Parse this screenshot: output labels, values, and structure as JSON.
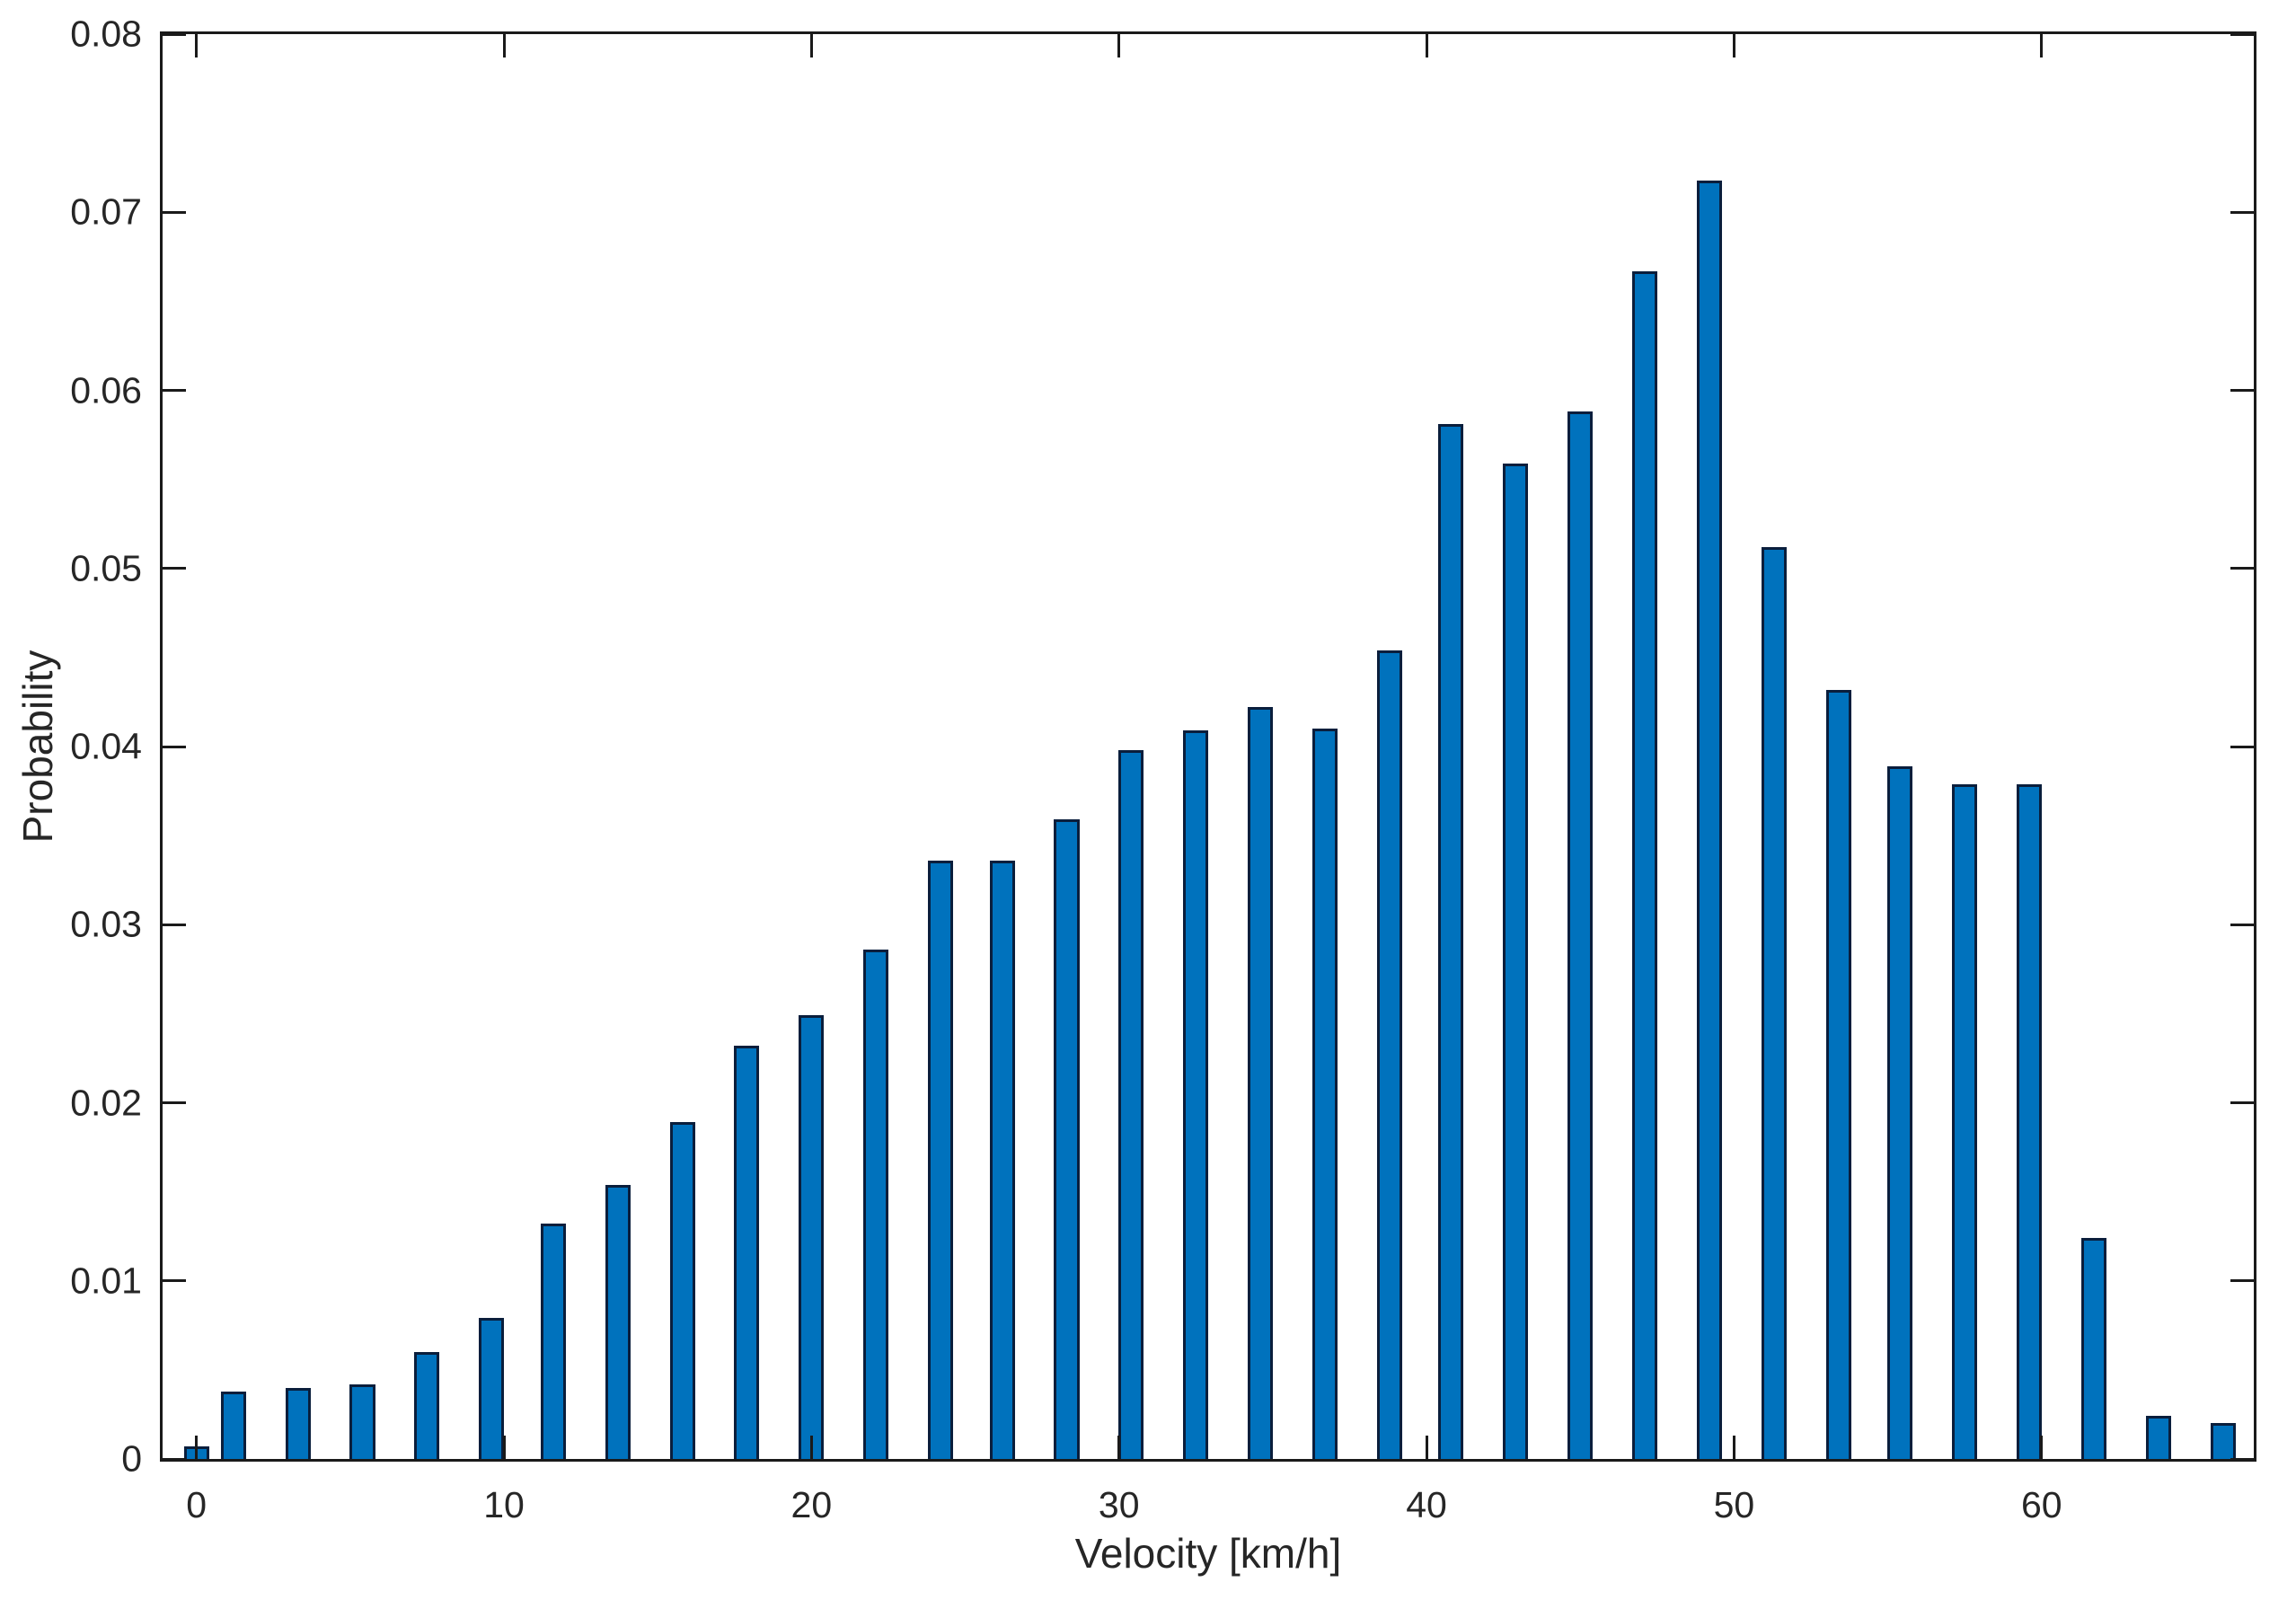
{
  "chart_data": {
    "type": "bar",
    "title": "",
    "xlabel": "Velocity [km/h]",
    "ylabel": "Probability",
    "x": [
      0,
      1.2,
      3.3,
      5.4,
      7.5,
      9.6,
      11.6,
      13.7,
      15.8,
      17.9,
      20.0,
      22.1,
      24.2,
      26.2,
      28.3,
      30.4,
      32.5,
      34.6,
      36.7,
      38.8,
      40.8,
      42.9,
      45.0,
      47.1,
      49.2,
      51.3,
      53.4,
      55.4,
      57.5,
      59.6,
      61.7,
      63.8,
      65.9
    ],
    "values": [
      0.0007,
      0.0038,
      0.004,
      0.0042,
      0.006,
      0.0079,
      0.0132,
      0.0154,
      0.0189,
      0.0232,
      0.0249,
      0.0286,
      0.0336,
      0.0336,
      0.0359,
      0.0398,
      0.0409,
      0.0422,
      0.041,
      0.0454,
      0.0581,
      0.0559,
      0.0588,
      0.0667,
      0.0718,
      0.0512,
      0.0432,
      0.0389,
      0.0379,
      0.0379,
      0.0124,
      0.0024,
      0.002
    ],
    "xlim": [
      -1.1,
      66.9
    ],
    "ylim": [
      0,
      0.08
    ],
    "xticks": [
      0,
      10,
      20,
      30,
      40,
      50,
      60
    ],
    "xtick_labels": [
      "0",
      "10",
      "20",
      "30",
      "40",
      "50",
      "60"
    ],
    "yticks": [
      0,
      0.01,
      0.02,
      0.03,
      0.04,
      0.05,
      0.06,
      0.07,
      0.08
    ],
    "ytick_labels": [
      "0",
      "0.01",
      "0.02",
      "0.03",
      "0.04",
      "0.05",
      "0.06",
      "0.07",
      "0.08"
    ],
    "bar_width_data": 0.82,
    "grid": false,
    "legend": null,
    "colors": {
      "bar_fill": "#0072BD",
      "bar_edge": "#0a1e3c",
      "axis": "#1a1a1a",
      "text": "#262626",
      "background": "#ffffff"
    }
  }
}
